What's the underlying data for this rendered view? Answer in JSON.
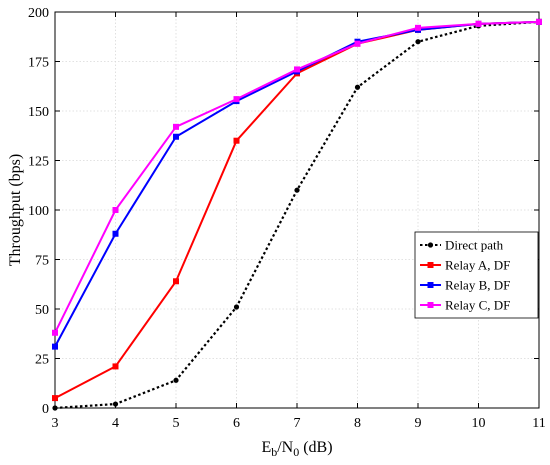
{
  "chart_data": {
    "type": "line",
    "xlabel_main": "E",
    "xlabel_sub1": "b",
    "xlabel_mid": "/N",
    "xlabel_sub2": "0",
    "xlabel_unit": " (dB)",
    "ylabel": "Throughput (bps)",
    "xlim": [
      3,
      11
    ],
    "ylim": [
      0,
      200
    ],
    "x_ticks": [
      3,
      4,
      5,
      6,
      7,
      8,
      9,
      10,
      11
    ],
    "y_ticks": [
      0,
      25,
      50,
      75,
      100,
      125,
      150,
      175,
      200
    ],
    "grid": true,
    "legend_position": "right",
    "x": [
      3,
      4,
      5,
      6,
      7,
      8,
      9,
      10,
      11
    ],
    "series": [
      {
        "name": "Direct path",
        "color": "#000000",
        "dashed": true,
        "marker": "circle",
        "values": [
          0,
          2,
          14,
          51,
          110,
          162,
          185,
          193,
          195
        ]
      },
      {
        "name": "Relay A, DF",
        "color": "#ff0000",
        "dashed": false,
        "marker": "square",
        "values": [
          5,
          21,
          64,
          135,
          169,
          184,
          191,
          194,
          195
        ]
      },
      {
        "name": "Relay B, DF",
        "color": "#0000ff",
        "dashed": false,
        "marker": "square",
        "values": [
          31,
          88,
          137,
          155,
          170,
          185,
          191,
          194,
          195
        ]
      },
      {
        "name": "Relay C, DF",
        "color": "#ff00ff",
        "dashed": false,
        "marker": "square",
        "values": [
          38,
          100,
          142,
          156,
          171,
          184,
          192,
          194,
          195
        ]
      }
    ]
  }
}
